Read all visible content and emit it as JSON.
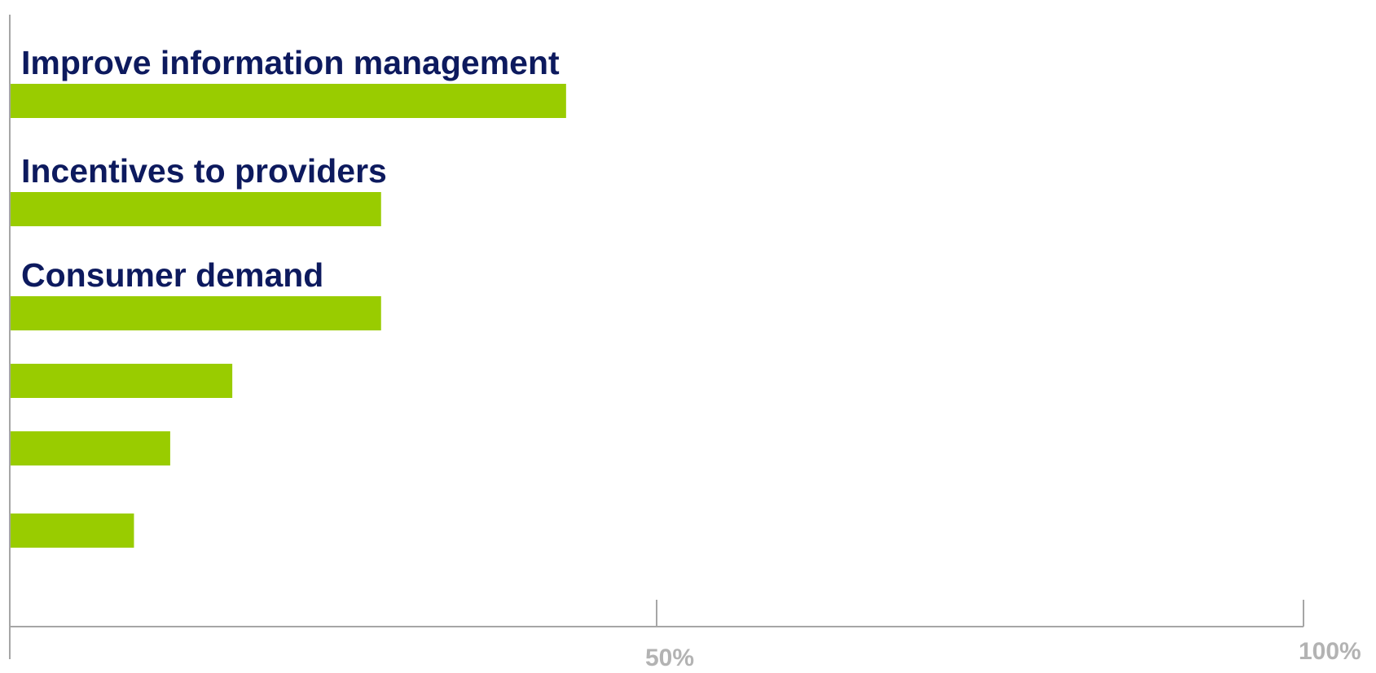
{
  "chart_data": {
    "type": "bar",
    "orientation": "horizontal",
    "categories": [
      "Improve information management",
      "Incentives to providers",
      "Consumer demand",
      "",
      "",
      ""
    ],
    "values": [
      43,
      28.7,
      28.7,
      17.2,
      12.4,
      9.6
    ],
    "xlim": [
      0,
      100
    ],
    "x_ticks": [
      {
        "value": 50,
        "label": "50%"
      },
      {
        "value": 100,
        "label": "100%"
      }
    ],
    "grid": false,
    "legend": "none",
    "colors": {
      "bar": "#99cc00",
      "category_text": "#0d1a5e",
      "tick_text": "#b3b3b3",
      "axis": "#a6a6a6"
    }
  }
}
